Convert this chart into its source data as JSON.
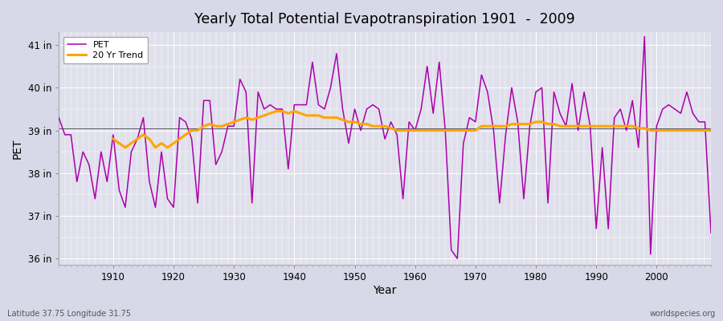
{
  "title": "Yearly Total Potential Evapotranspiration 1901  -  2009",
  "xlabel": "Year",
  "ylabel": "PET",
  "subtitle_left": "Latitude 37.75 Longitude 31.75",
  "subtitle_right": "worldspecies.org",
  "ylim": [
    35.85,
    41.3
  ],
  "yticks": [
    36,
    37,
    38,
    39,
    40,
    41
  ],
  "ytick_labels": [
    "36 in",
    "37 in",
    "38 in",
    "39 in",
    "40 in",
    "41 in"
  ],
  "xticks": [
    1910,
    1920,
    1930,
    1940,
    1950,
    1960,
    1970,
    1980,
    1990,
    2000
  ],
  "pet_color": "#AA00AA",
  "trend_color": "#FFA500",
  "mean_line_color": "#333333",
  "fig_bg_color": "#D8D8E8",
  "plot_bg_color": "#E0E0EC",
  "years": [
    1901,
    1902,
    1903,
    1904,
    1905,
    1906,
    1907,
    1908,
    1909,
    1910,
    1911,
    1912,
    1913,
    1914,
    1915,
    1916,
    1917,
    1918,
    1919,
    1920,
    1921,
    1922,
    1923,
    1924,
    1925,
    1926,
    1927,
    1928,
    1929,
    1930,
    1931,
    1932,
    1933,
    1934,
    1935,
    1936,
    1937,
    1938,
    1939,
    1940,
    1941,
    1942,
    1943,
    1944,
    1945,
    1946,
    1947,
    1948,
    1949,
    1950,
    1951,
    1952,
    1953,
    1954,
    1955,
    1956,
    1957,
    1958,
    1959,
    1960,
    1961,
    1962,
    1963,
    1964,
    1965,
    1966,
    1967,
    1968,
    1969,
    1970,
    1971,
    1972,
    1973,
    1974,
    1975,
    1976,
    1977,
    1978,
    1979,
    1980,
    1981,
    1982,
    1983,
    1984,
    1985,
    1986,
    1987,
    1988,
    1989,
    1990,
    1991,
    1992,
    1993,
    1994,
    1995,
    1996,
    1997,
    1998,
    1999,
    2000,
    2001,
    2002,
    2003,
    2004,
    2005,
    2006,
    2007,
    2008,
    2009
  ],
  "pet": [
    39.3,
    38.9,
    38.9,
    37.8,
    38.5,
    38.2,
    37.4,
    38.5,
    37.8,
    38.9,
    37.6,
    37.2,
    38.5,
    38.8,
    39.3,
    37.8,
    37.2,
    38.5,
    37.4,
    37.2,
    39.3,
    39.2,
    38.8,
    37.3,
    39.7,
    39.7,
    38.2,
    38.5,
    39.1,
    39.1,
    40.2,
    39.9,
    37.3,
    39.9,
    39.5,
    39.6,
    39.5,
    39.5,
    38.1,
    39.6,
    39.6,
    39.6,
    40.6,
    39.6,
    39.5,
    40.0,
    40.8,
    39.5,
    38.7,
    39.5,
    39.0,
    39.5,
    39.6,
    39.5,
    38.8,
    39.2,
    38.9,
    37.4,
    39.2,
    39.0,
    39.5,
    40.5,
    39.4,
    40.6,
    39.0,
    36.2,
    36.0,
    38.7,
    39.3,
    39.2,
    40.3,
    39.9,
    39.0,
    37.3,
    38.9,
    40.0,
    39.2,
    37.4,
    39.1,
    39.9,
    40.0,
    37.3,
    39.9,
    39.4,
    39.1,
    40.1,
    39.0,
    39.9,
    39.1,
    36.7,
    38.6,
    36.7,
    39.3,
    39.5,
    39.0,
    39.7,
    38.6,
    41.2,
    36.1,
    39.1,
    39.5,
    39.6,
    39.5,
    39.4,
    39.9,
    39.4,
    39.2,
    39.2,
    36.6
  ],
  "trend": [
    null,
    null,
    null,
    null,
    null,
    null,
    null,
    null,
    null,
    38.8,
    38.7,
    38.6,
    38.7,
    38.8,
    38.9,
    38.8,
    38.6,
    38.7,
    38.6,
    38.7,
    38.8,
    38.9,
    39.0,
    39.0,
    39.1,
    39.15,
    39.1,
    39.1,
    39.15,
    39.2,
    39.25,
    39.3,
    39.25,
    39.3,
    39.35,
    39.4,
    39.45,
    39.45,
    39.4,
    39.45,
    39.4,
    39.35,
    39.35,
    39.35,
    39.3,
    39.3,
    39.3,
    39.25,
    39.2,
    39.2,
    39.15,
    39.15,
    39.1,
    39.1,
    39.1,
    39.05,
    39.0,
    39.0,
    39.0,
    39.0,
    39.0,
    39.0,
    39.0,
    39.0,
    39.0,
    39.0,
    39.0,
    39.0,
    39.0,
    39.0,
    39.1,
    39.1,
    39.1,
    39.1,
    39.1,
    39.15,
    39.15,
    39.15,
    39.15,
    39.2,
    39.2,
    39.15,
    39.15,
    39.1,
    39.1,
    39.1,
    39.1,
    39.1,
    39.1,
    39.1,
    39.1,
    39.1,
    39.1,
    39.1,
    39.1,
    39.1,
    39.05,
    39.05,
    39.0,
    39.0,
    39.0,
    39.0,
    39.0,
    39.0,
    39.0,
    39.0,
    39.0,
    39.0,
    39.0
  ],
  "mean_val": 39.05
}
